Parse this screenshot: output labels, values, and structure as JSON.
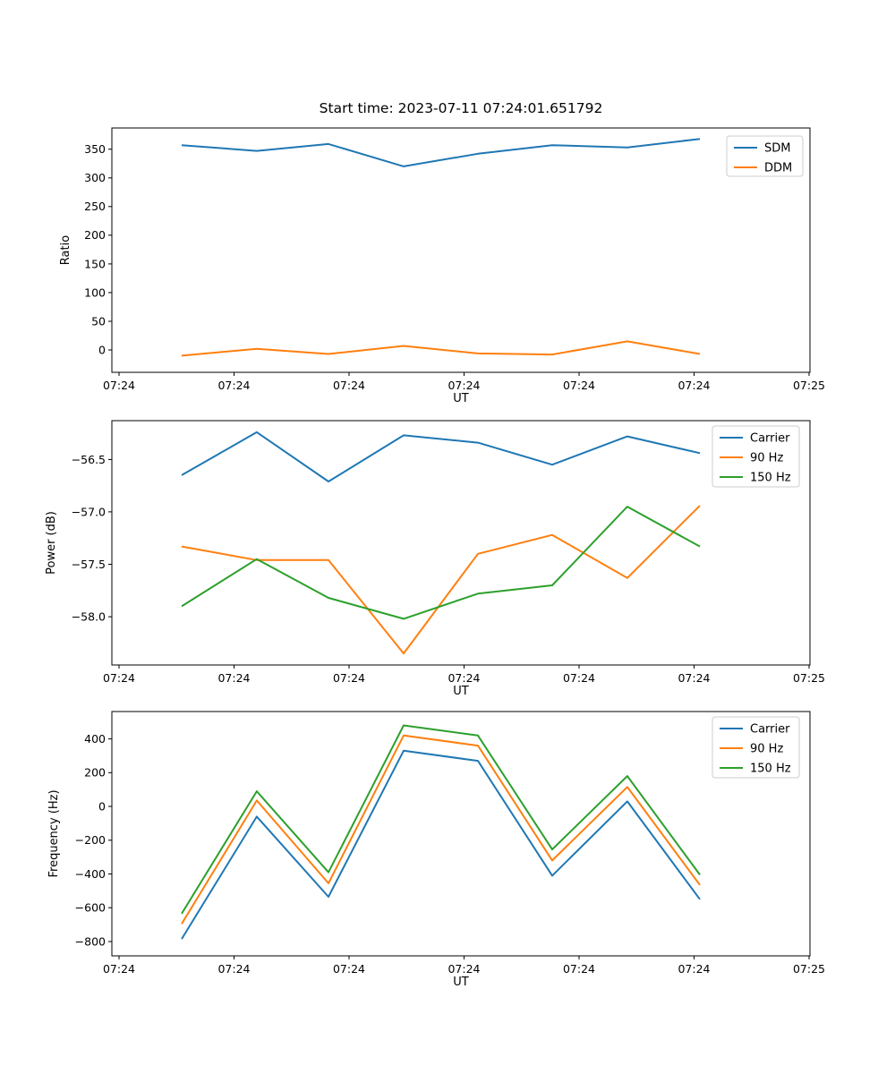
{
  "figure": {
    "title": "Start time: 2023-07-11 07:24:01.651792",
    "background": "#ffffff"
  },
  "chart_data": [
    {
      "type": "line",
      "title": "",
      "xlabel": "UT",
      "ylabel": "Ratio",
      "grid": false,
      "legend_loc": "upper right",
      "x": [
        5.45,
        11.98,
        18.21,
        24.75,
        31.21,
        37.67,
        44.2,
        50.51
      ],
      "xlim": [
        -0.62,
        60.08
      ],
      "ylim": [
        -39,
        387
      ],
      "xticks": {
        "values": [
          0,
          10,
          20,
          30,
          40,
          50,
          60
        ],
        "labels": [
          "07:24",
          "07:24",
          "07:24",
          "07:24",
          "07:24",
          "07:24",
          "07:25"
        ]
      },
      "yticks": {
        "values": [
          0,
          50,
          100,
          150,
          200,
          250,
          300,
          350
        ],
        "labels": [
          "0",
          "50",
          "100",
          "150",
          "200",
          "250",
          "300",
          "350"
        ]
      },
      "series": [
        {
          "name": "SDM",
          "color": "#1f77b4",
          "values": [
            357,
            347,
            359,
            320,
            342,
            357,
            353,
            368
          ]
        },
        {
          "name": "DDM",
          "color": "#ff7f0e",
          "values": [
            -10,
            2,
            -7,
            7,
            -6,
            -8,
            15,
            -7
          ]
        }
      ]
    },
    {
      "type": "line",
      "title": "",
      "xlabel": "UT",
      "ylabel": "Power (dB)",
      "grid": false,
      "legend_loc": "upper right",
      "x": [
        5.45,
        11.98,
        18.21,
        24.75,
        31.21,
        37.67,
        44.2,
        50.51
      ],
      "xlim": [
        -0.62,
        60.08
      ],
      "ylim": [
        -58.46,
        -56.13
      ],
      "xticks": {
        "values": [
          0,
          10,
          20,
          30,
          40,
          50,
          60
        ],
        "labels": [
          "07:24",
          "07:24",
          "07:24",
          "07:24",
          "07:24",
          "07:24",
          "07:25"
        ]
      },
      "yticks": {
        "values": [
          -56.5,
          -57.0,
          -57.5,
          -58.0
        ],
        "labels": [
          "−56.5",
          "−57.0",
          "−57.5",
          "−58.0"
        ]
      },
      "series": [
        {
          "name": "Carrier",
          "color": "#1f77b4",
          "values": [
            -56.65,
            -56.24,
            -56.71,
            -56.27,
            -56.34,
            -56.55,
            -56.28,
            -56.44
          ]
        },
        {
          "name": "90 Hz",
          "color": "#ff7f0e",
          "values": [
            -57.33,
            -57.46,
            -57.46,
            -58.35,
            -57.4,
            -57.22,
            -57.63,
            -56.94
          ]
        },
        {
          "name": "150 Hz",
          "color": "#2ca02c",
          "values": [
            -57.9,
            -57.45,
            -57.82,
            -58.02,
            -57.78,
            -57.7,
            -56.95,
            -57.33
          ]
        }
      ]
    },
    {
      "type": "line",
      "title": "",
      "xlabel": "UT",
      "ylabel": "Frequency (Hz)",
      "grid": false,
      "legend_loc": "upper right",
      "x": [
        5.45,
        11.98,
        18.21,
        24.75,
        31.21,
        37.67,
        44.2,
        50.51
      ],
      "xlim": [
        -0.62,
        60.08
      ],
      "ylim": [
        -885,
        562
      ],
      "xticks": {
        "values": [
          0,
          10,
          20,
          30,
          40,
          50,
          60
        ],
        "labels": [
          "07:24",
          "07:24",
          "07:24",
          "07:24",
          "07:24",
          "07:24",
          "07:25"
        ]
      },
      "yticks": {
        "values": [
          400,
          200,
          0,
          -200,
          -400,
          -600,
          -800
        ],
        "labels": [
          "400",
          "200",
          "0",
          "−200",
          "−400",
          "−600",
          "−800"
        ]
      },
      "series": [
        {
          "name": "Carrier",
          "color": "#1f77b4",
          "values": [
            -785,
            -60,
            -535,
            330,
            270,
            -410,
            30,
            -550
          ]
        },
        {
          "name": "90 Hz",
          "color": "#ff7f0e",
          "values": [
            -695,
            35,
            -455,
            420,
            360,
            -320,
            115,
            -465
          ]
        },
        {
          "name": "150 Hz",
          "color": "#2ca02c",
          "values": [
            -635,
            90,
            -390,
            480,
            420,
            -255,
            180,
            -405
          ]
        }
      ]
    }
  ]
}
